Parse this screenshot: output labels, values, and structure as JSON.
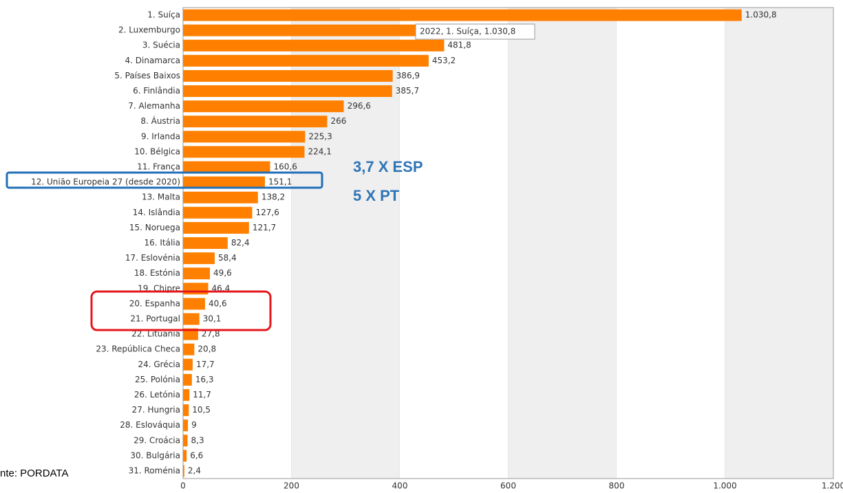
{
  "chart_data": {
    "type": "bar",
    "orientation": "horizontal",
    "color": "#ff8000",
    "categories": [
      "1. Suíça",
      "2. Luxemburgo",
      "3. Suécia",
      "4. Dinamarca",
      "5. Países Baixos",
      "6. Finlândia",
      "7. Alemanha",
      "8. Áustria",
      "9. Irlanda",
      "10. Bélgica",
      "11. França",
      "12. União Europeia 27 (desde 2020)",
      "13. Malta",
      "14. Islândia",
      "15. Noruega",
      "16. Itália",
      "17. Eslovénia",
      "18. Estónia",
      "19. Chipre",
      "20. Espanha",
      "21. Portugal",
      "22. Lituânia",
      "23. República Checa",
      "24. Grécia",
      "25. Polónia",
      "26. Letónia",
      "27. Hungria",
      "28. Eslováquia",
      "29. Croácia",
      "30. Bulgária",
      "31. Roménia"
    ],
    "values": [
      1030.8,
      570,
      481.8,
      453.2,
      386.9,
      385.7,
      296.6,
      266,
      225.3,
      224.1,
      160.6,
      151.1,
      138.2,
      127.6,
      121.7,
      82.4,
      58.4,
      49.6,
      46.4,
      40.6,
      30.1,
      27.8,
      20.8,
      17.7,
      16.3,
      11.7,
      10.5,
      9,
      8.3,
      6.6,
      2.4
    ],
    "value_labels": [
      "1.030,8",
      null,
      "481,8",
      "453,2",
      "386,9",
      "385,7",
      "296,6",
      "266",
      "225,3",
      "224,1",
      "160,6",
      "151,1",
      "138,2",
      "127,6",
      "121,7",
      "82,4",
      "58,4",
      "49,6",
      "46,4",
      "40,6",
      "30,1",
      "27,8",
      "20,8",
      "17,7",
      "16,3",
      "11,7",
      "10,5",
      "9",
      "8,3",
      "6,6",
      "2,4"
    ],
    "xlim": [
      0,
      1200
    ],
    "xticks": [
      0,
      200,
      400,
      600,
      800,
      {
        "value": 1000,
        "label": "1.000"
      },
      {
        "value": 1200,
        "label": "1.200"
      }
    ],
    "grid": true,
    "tooltip": "2022, 1. Suíça, 1.030,8",
    "annotations": [
      "3,7 X ESP",
      "5 X PT"
    ],
    "source": "nte: PORDATA"
  }
}
